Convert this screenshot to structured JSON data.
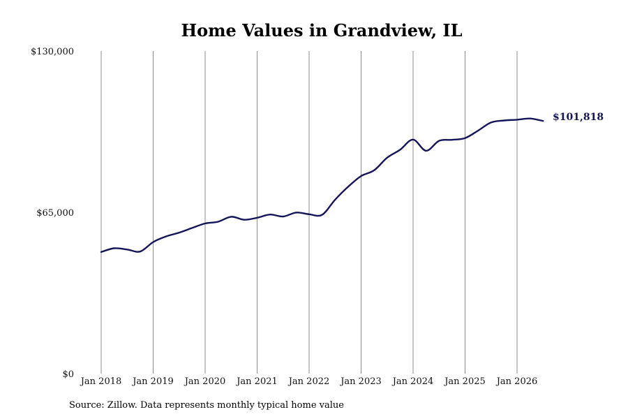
{
  "chart_data": {
    "type": "line",
    "title": "Home Values in Grandview, IL",
    "xlabel": "",
    "ylabel": "",
    "ylim": [
      0,
      130000
    ],
    "yticks": [
      {
        "value": 0,
        "label": "$0"
      },
      {
        "value": 65000,
        "label": "$65,000"
      },
      {
        "value": 130000,
        "label": "$130,000"
      }
    ],
    "xticks": [
      "Jan 2018",
      "Jan 2019",
      "Jan 2020",
      "Jan 2021",
      "Jan 2022",
      "Jan 2023",
      "Jan 2024",
      "Jan 2025",
      "Jan 2026"
    ],
    "grid": "vertical",
    "series": [
      {
        "color": "#14145a",
        "x": [
          "2018-01",
          "2018-04",
          "2018-07",
          "2018-10",
          "2019-01",
          "2019-04",
          "2019-07",
          "2019-10",
          "2020-01",
          "2020-04",
          "2020-07",
          "2020-10",
          "2021-01",
          "2021-04",
          "2021-07",
          "2021-10",
          "2022-01",
          "2022-04",
          "2022-07",
          "2022-10",
          "2023-01",
          "2023-04",
          "2023-07",
          "2023-10",
          "2024-01",
          "2024-04",
          "2024-07",
          "2024-10",
          "2025-01",
          "2025-04",
          "2025-07",
          "2025-10",
          "2026-01",
          "2026-04",
          "2026-07"
        ],
        "values": [
          49000,
          50500,
          50000,
          49200,
          53000,
          55300,
          56800,
          58700,
          60500,
          61200,
          63200,
          62000,
          62800,
          64100,
          63300,
          64900,
          64200,
          64000,
          70100,
          75300,
          79600,
          81900,
          87000,
          90200,
          94300,
          89800,
          93800,
          94200,
          94900,
          97900,
          101200,
          102000,
          102300,
          102800,
          101818
        ]
      }
    ],
    "end_label": "$101,818",
    "end_value": 101818
  },
  "source_text": "Source: Zillow. Data represents monthly typical home value"
}
